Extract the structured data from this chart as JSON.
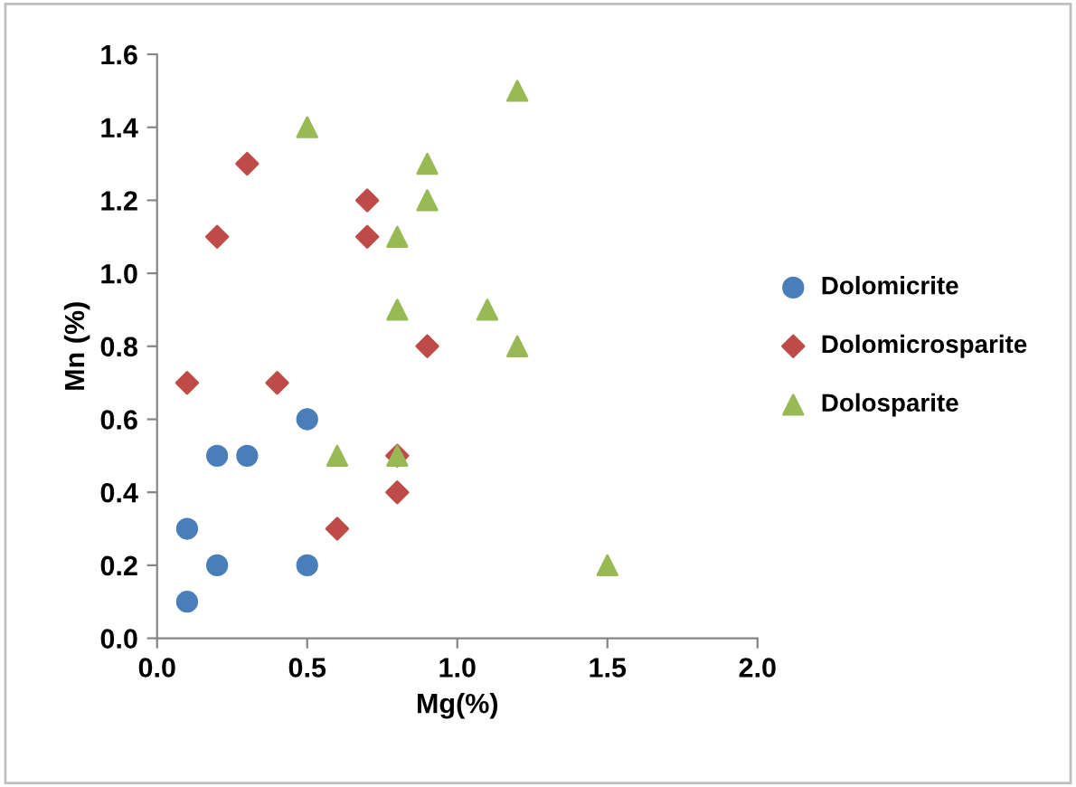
{
  "chart_data": {
    "type": "scatter",
    "xlabel": "Mg(%)",
    "ylabel": "Mn (%)",
    "xlim": [
      0,
      2
    ],
    "xticks": [
      {
        "value": 0,
        "label": "0.0"
      },
      {
        "value": 0.5,
        "label": "0.5"
      },
      {
        "value": 1,
        "label": "1.0"
      },
      {
        "value": 1.5,
        "label": "1.5"
      },
      {
        "value": 2,
        "label": "2.0"
      }
    ],
    "ylim": [
      0,
      1.6
    ],
    "yticks": [
      {
        "value": 0,
        "label": "0.0"
      },
      {
        "value": 0.2,
        "label": "0.2"
      },
      {
        "value": 0.4,
        "label": "0.4"
      },
      {
        "value": 0.6,
        "label": "0.6"
      },
      {
        "value": 0.8,
        "label": "0.8"
      },
      {
        "value": 1,
        "label": "1.0"
      },
      {
        "value": 1.2,
        "label": "1.2"
      },
      {
        "value": 1.4,
        "label": "1.4"
      },
      {
        "value": 1.6,
        "label": "1.6"
      }
    ],
    "grid": false,
    "legend": "right",
    "series": [
      {
        "name": "Dolomicrite",
        "color": "#4a7ebb",
        "marker": "circle",
        "x": [
          0.1,
          0.1,
          0.2,
          0.2,
          0.3,
          0.5,
          0.5
        ],
        "values": [
          0.1,
          0.3,
          0.2,
          0.5,
          0.5,
          0.6,
          0.2
        ]
      },
      {
        "name": "Dolomicrosparite",
        "color": "#be4b48",
        "marker": "diamond",
        "x": [
          0.1,
          0.2,
          0.3,
          0.4,
          0.6,
          0.7,
          0.7,
          0.8,
          0.8,
          0.9
        ],
        "values": [
          0.7,
          1.1,
          1.3,
          0.7,
          0.3,
          1.2,
          1.1,
          0.5,
          0.4,
          0.8
        ]
      },
      {
        "name": "Dolosparite",
        "color": "#98b954",
        "marker": "triangle",
        "x": [
          0.5,
          0.6,
          0.8,
          0.8,
          0.8,
          0.9,
          0.9,
          1.1,
          1.2,
          1.2,
          1.5
        ],
        "values": [
          1.4,
          0.5,
          1.1,
          0.9,
          0.5,
          1.3,
          1.2,
          0.9,
          0.8,
          1.5,
          0.2
        ]
      }
    ]
  }
}
